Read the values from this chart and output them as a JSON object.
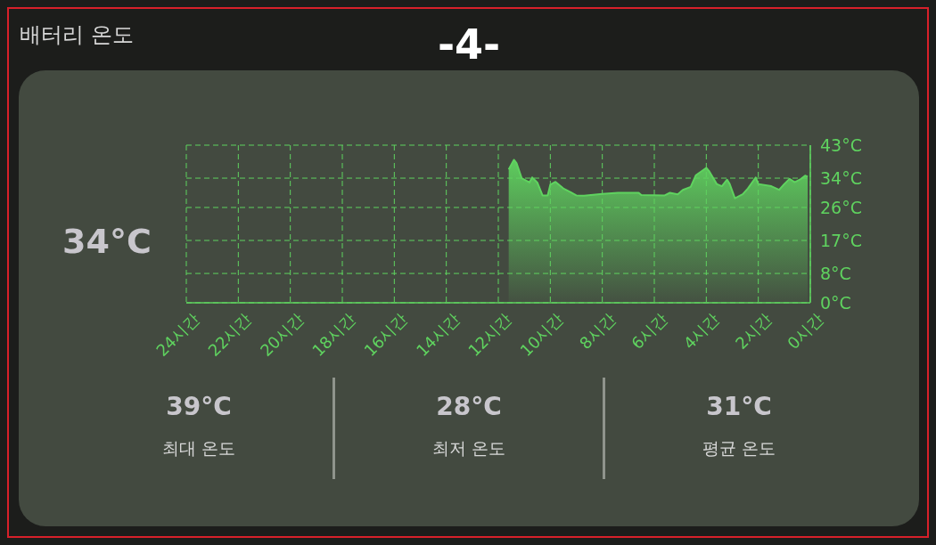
{
  "chart_data": {
    "type": "area",
    "title": "배터리 온도",
    "annotations": [
      "-4-",
      "34°C",
      "39°C",
      "최대 온도",
      "28°C",
      "최저 온도",
      "31°C",
      "평균 온도"
    ],
    "x": [
      11.6,
      11.4,
      11.3,
      11.1,
      10.8,
      10.7,
      10.5,
      10.3,
      10.1,
      10.0,
      9.8,
      9.5,
      9.2,
      9.0,
      8.7,
      8.0,
      7.4,
      6.6,
      6.5,
      5.6,
      5.4,
      5.1,
      4.9,
      4.6,
      4.4,
      4.0,
      3.9,
      3.6,
      3.4,
      3.2,
      3.1,
      2.9,
      2.6,
      2.4,
      2.1,
      2.0,
      1.5,
      1.2,
      1.0,
      0.8,
      0.6,
      0.4,
      0.2,
      0.1
    ],
    "series": [
      {
        "color": "#5fd35f",
        "values": [
          36.4,
          39.0,
          38.1,
          34.0,
          32.8,
          34.2,
          32.8,
          29.3,
          29.3,
          32.2,
          33.0,
          31.2,
          30.1,
          29.3,
          29.2,
          29.7,
          30.0,
          30.0,
          29.4,
          29.3,
          30.0,
          29.6,
          30.8,
          31.6,
          34.8,
          36.8,
          36.0,
          32.4,
          31.8,
          33.6,
          32.4,
          28.5,
          29.6,
          31.2,
          34.2,
          32.4,
          31.8,
          30.8,
          32.4,
          33.8,
          32.9,
          33.6,
          34.7,
          34.4
        ]
      }
    ],
    "xlim": [
      24,
      0
    ],
    "xticks": [
      {
        "value": 24,
        "label": "24시간"
      },
      {
        "value": 22,
        "label": "22시간"
      },
      {
        "value": 20,
        "label": "20시간"
      },
      {
        "value": 18,
        "label": "18시간"
      },
      {
        "value": 16,
        "label": "16시간"
      },
      {
        "value": 14,
        "label": "14시간"
      },
      {
        "value": 12,
        "label": "12시간"
      },
      {
        "value": 10,
        "label": "10시간"
      },
      {
        "value": 8,
        "label": "8시간"
      },
      {
        "value": 6,
        "label": "6시간"
      },
      {
        "value": 4,
        "label": "4시간"
      },
      {
        "value": 2,
        "label": "2시간"
      },
      {
        "value": 0,
        "label": "0시간"
      }
    ],
    "ylim": [
      0,
      43
    ],
    "yticks": [
      {
        "value": 0,
        "label": "0°C"
      },
      {
        "value": 8,
        "label": "8°C"
      },
      {
        "value": 17,
        "label": "17°C"
      },
      {
        "value": 26,
        "label": "26°C"
      },
      {
        "value": 34,
        "label": "34°C"
      },
      {
        "value": 43,
        "label": "43°C"
      }
    ],
    "grid": true
  }
}
